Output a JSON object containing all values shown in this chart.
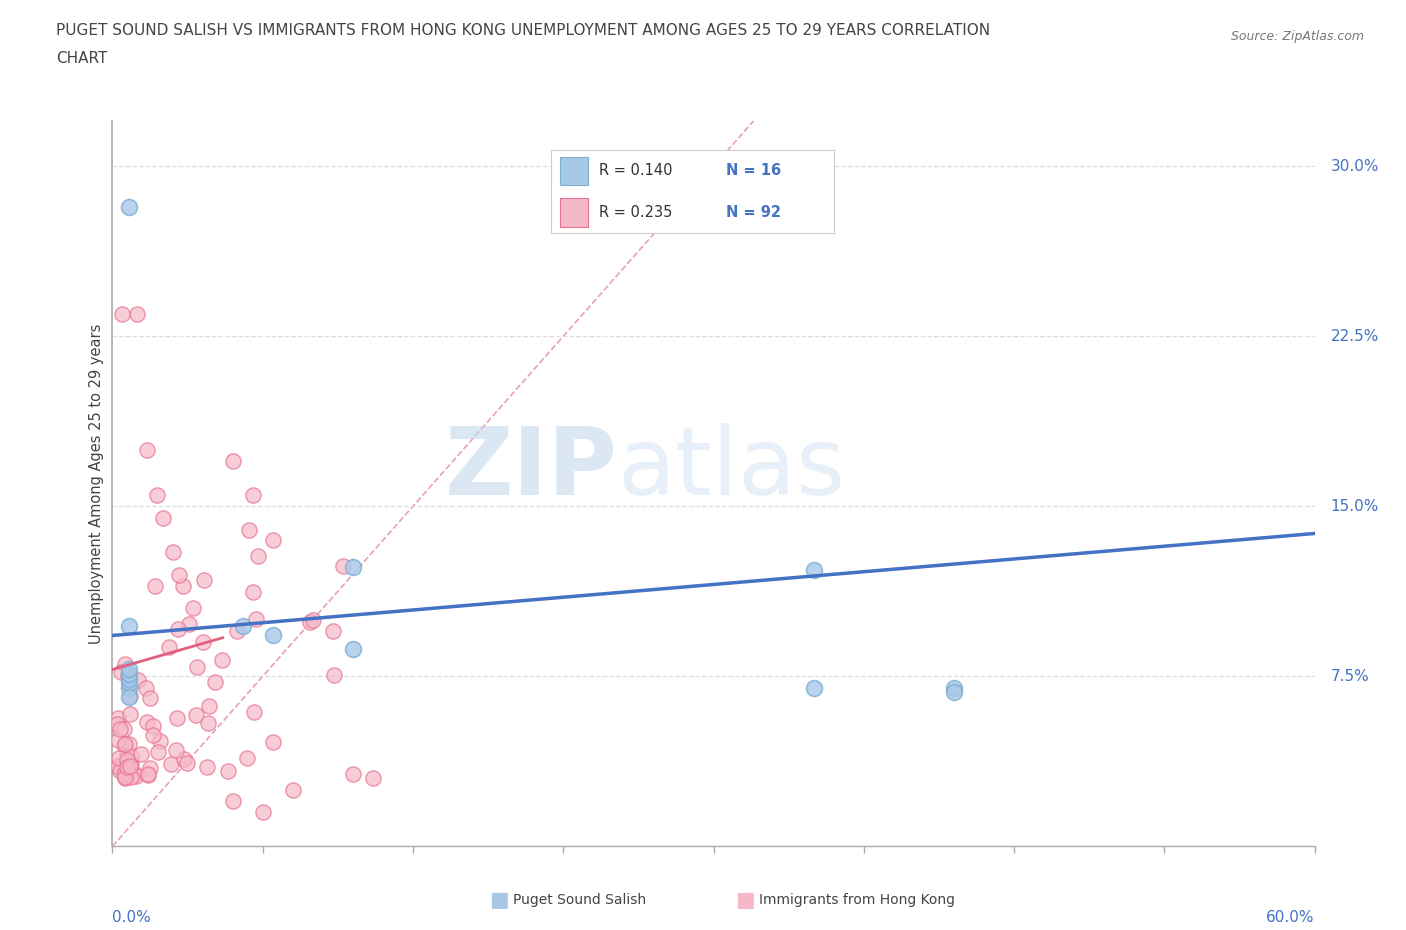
{
  "title_line1": "PUGET SOUND SALISH VS IMMIGRANTS FROM HONG KONG UNEMPLOYMENT AMONG AGES 25 TO 29 YEARS CORRELATION",
  "title_line2": "CHART",
  "source_text": "Source: ZipAtlas.com",
  "xlabel_bottom_left": "0.0%",
  "xlabel_bottom_right": "60.0%",
  "ylabel": "Unemployment Among Ages 25 to 29 years",
  "ytick_labels": [
    "7.5%",
    "15.0%",
    "22.5%",
    "30.0%"
  ],
  "ytick_values": [
    0.075,
    0.15,
    0.225,
    0.3
  ],
  "xmin": 0.0,
  "xmax": 0.6,
  "ymin": 0.0,
  "ymax": 0.32,
  "watermark_zip": "ZIP",
  "watermark_atlas": "atlas",
  "legend_r1": "R = 0.140",
  "legend_n1": "N = 16",
  "legend_r2": "R = 0.235",
  "legend_n2": "N = 92",
  "color_salish": "#a8c8e8",
  "color_salish_edge": "#7aafd4",
  "color_hk": "#f5b8c8",
  "color_hk_edge": "#e87090",
  "color_salish_line": "#4472c4",
  "color_hk_line": "#e06080",
  "color_diag": "#ddbbcc",
  "salish_x": [
    0.008,
    0.008,
    0.008,
    0.008,
    0.008,
    0.065,
    0.12,
    0.12,
    0.08,
    0.35,
    0.35,
    0.42,
    0.42,
    0.008,
    0.008,
    0.008
  ],
  "salish_y": [
    0.282,
    0.097,
    0.07,
    0.072,
    0.066,
    0.097,
    0.123,
    0.087,
    0.093,
    0.122,
    0.07,
    0.07,
    0.068,
    0.074,
    0.076,
    0.078
  ],
  "sal_trend_x0": 0.0,
  "sal_trend_x1": 0.6,
  "sal_trend_y0": 0.093,
  "sal_trend_y1": 0.138,
  "hk_trend_x0": 0.0,
  "hk_trend_x1": 0.055,
  "hk_trend_y0": 0.078,
  "hk_trend_y1": 0.092
}
